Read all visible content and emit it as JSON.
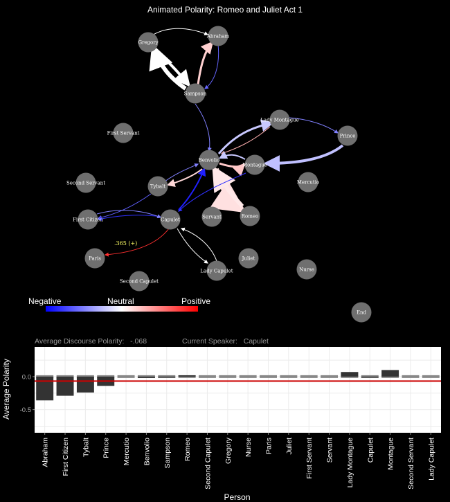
{
  "title": "Animated Polarity: Romeo and Juliet Act 1",
  "colors": {
    "negative": "#0000ff",
    "neutral": "#ffffff",
    "positive": "#ff0000",
    "node": "#6f6f6f",
    "bar": "#333333",
    "mean_line": "#cc0000",
    "dash": "#888888"
  },
  "legend": {
    "negative": "Negative",
    "neutral": "Neutral",
    "positive": "Positive"
  },
  "stats": {
    "avg_label": "Average Discourse Polarity:",
    "avg_value": "-.068",
    "speaker_label": "Current Speaker:",
    "speaker_value": "Capulet"
  },
  "network": {
    "nodes": [
      "Gregory",
      "Abraham",
      "Sampson",
      "First Servant",
      "Lady Montague",
      "Prince",
      "Benvolio",
      "Montague",
      "Second Servant",
      "Tybalt",
      "Mercutio",
      "First Citizen",
      "Capulet",
      "Servant",
      "Romeo",
      "Paris",
      "Juliet",
      "Lady Capulet",
      "Nurse",
      "Second Capulet",
      "End"
    ],
    "edge_label": ".365 (+)"
  },
  "chart_data": {
    "type": "bar",
    "xlabel": "Person",
    "ylabel": "Average Polarity",
    "ylim": [
      -0.85,
      0.45
    ],
    "yticks": [
      0.0,
      -0.5
    ],
    "ytick_labels": [
      "0.0",
      "-0.5"
    ],
    "mean_line": -0.068,
    "grid": true,
    "categories": [
      "Abraham",
      "First Citizen",
      "Tybalt",
      "Prince",
      "Mercutio",
      "Benvolio",
      "Sampson",
      "Romeo",
      "Second Capulet",
      "Gregory",
      "Nurse",
      "Paris",
      "Juliet",
      "First Servant",
      "Servant",
      "Lady Montague",
      "Capulet",
      "Montague",
      "Second Servant",
      "Lady Capulet"
    ],
    "values": [
      -0.36,
      -0.29,
      -0.24,
      -0.14,
      0.0,
      -0.02,
      -0.01,
      0.02,
      0.0,
      0.0,
      0.0,
      0.0,
      0.0,
      0.0,
      0.0,
      0.07,
      -0.01,
      0.1,
      0.0,
      0.0
    ]
  }
}
